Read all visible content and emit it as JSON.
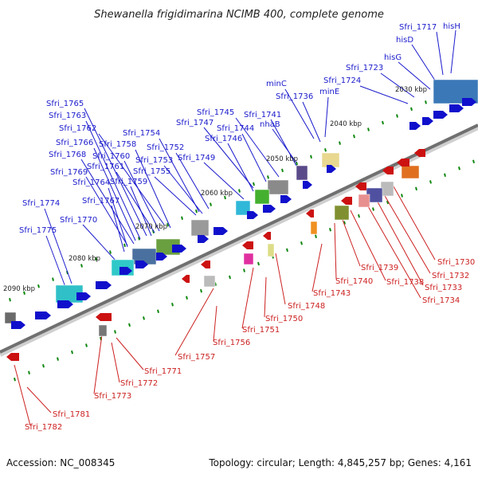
{
  "header": {
    "title": "Shewanella frigidimarina NCIMB 400, complete genome"
  },
  "footer": {
    "accession": "Accession: NC_008345",
    "topology": "Topology: circular; Length: 4,845,257 bp; Genes: 4,161"
  },
  "colors": {
    "forward_strand": "#1010cc",
    "reverse_strand": "#cc1111",
    "forward_label": "#1a1acc",
    "reverse_label": "#cc2020",
    "backbone": "#707070",
    "tick": "#118811"
  },
  "kbp_labels": [
    "2030 kbp",
    "2040 kbp",
    "2050 kbp",
    "2060 kbp",
    "2070 kbp",
    "2080 kbp",
    "2090 kbp"
  ],
  "forward_genes": [
    "hisH",
    "Sfri_1717",
    "hisD",
    "hisG",
    "Sfri_1723",
    "Sfri_1724",
    "minC",
    "minE",
    "Sfri_1736",
    "Sfri_1741",
    "Sfri_1745",
    "nhaB",
    "Sfri_1744",
    "Sfri_1747",
    "Sfri_1746",
    "Sfri_1754",
    "Sfri_1749",
    "Sfri_1752",
    "Sfri_1753",
    "Sfri_1755",
    "Sfri_1758",
    "Sfri_1762",
    "Sfri_1760",
    "Sfri_1761",
    "Sfri_1759",
    "Sfri_1765",
    "Sfri_1763",
    "Sfri_1766",
    "Sfri_1768",
    "Sfri_1769",
    "Sfri_1764",
    "Sfri_1767",
    "Sfri_1770",
    "Sfri_1774",
    "Sfri_1775"
  ],
  "reverse_genes": [
    "Sfri_1730",
    "Sfri_1732",
    "Sfri_1733",
    "Sfri_1734",
    "Sfri_1738",
    "Sfri_1739",
    "Sfri_1740",
    "Sfri_1743",
    "Sfri_1748",
    "Sfri_1750",
    "Sfri_1751",
    "Sfri_1756",
    "Sfri_1757",
    "Sfri_1771",
    "Sfri_1772",
    "Sfri_1773",
    "Sfri_1781",
    "Sfri_1782"
  ]
}
